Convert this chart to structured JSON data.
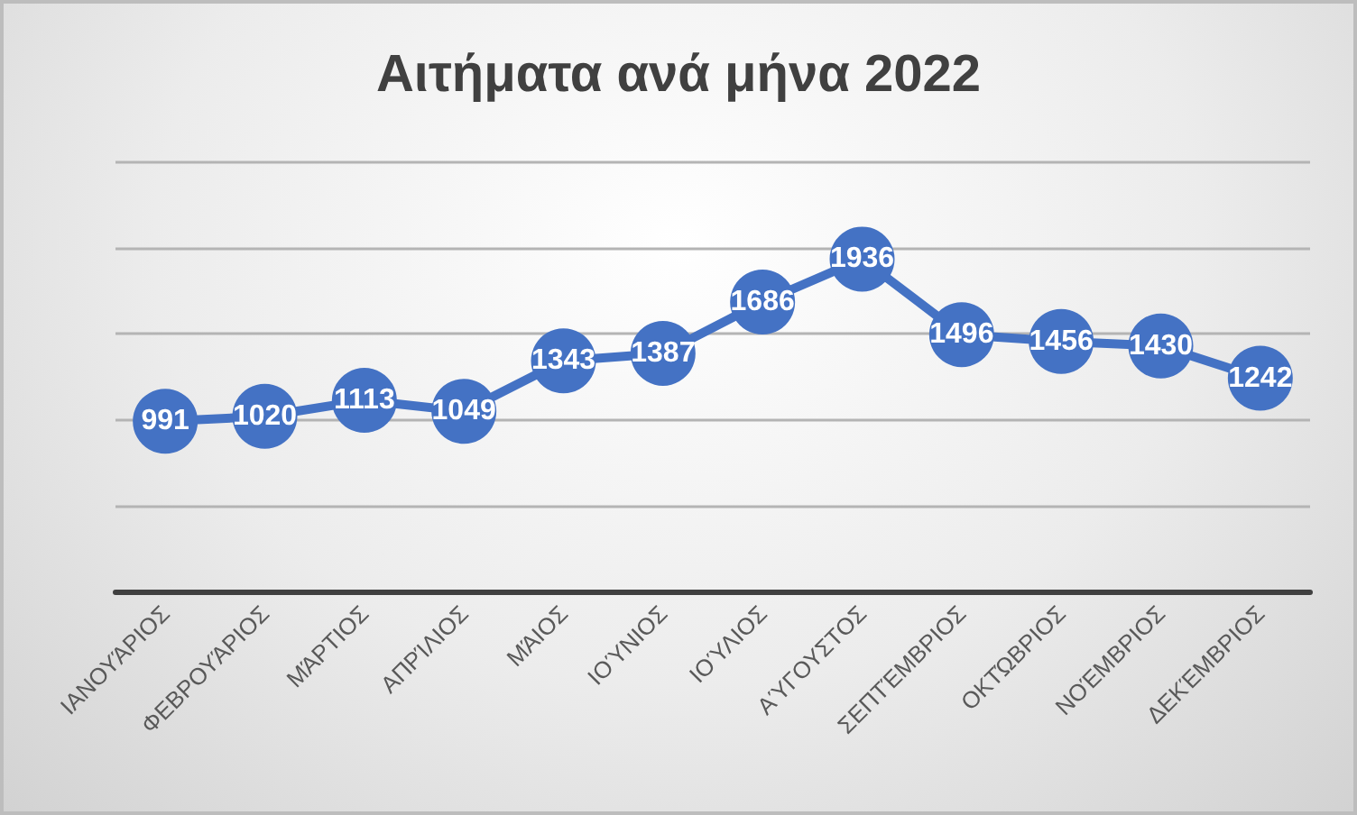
{
  "chart_data": {
    "type": "line",
    "title": "Αιτήματα ανά μήνα 2022",
    "categories": [
      "ΙΑΝΟΥΆΡΙΟΣ",
      "ΦΕΒΡΟΥΆΡΙΟΣ",
      "ΜΆΡΤΙΟΣ",
      "ΑΠΡΊΛΙΟΣ",
      "ΜΆΙΟΣ",
      "ΙΟΎΝΙΟΣ",
      "ΙΟΎΛΙΟΣ",
      "ΑΎΓΟΥΣΤΟΣ",
      "ΣΕΠΤΈΜΒΡΙΟΣ",
      "ΟΚΤΏΒΡΙΟΣ",
      "ΝΟΈΜΒΡΙΟΣ",
      "ΔΕΚΈΜΒΡΙΟΣ"
    ],
    "values": [
      991,
      1020,
      1113,
      1049,
      1343,
      1387,
      1686,
      1936,
      1496,
      1456,
      1430,
      1242
    ],
    "color": "#4472c4",
    "ylim": [
      0,
      2500
    ],
    "yticks": [
      0,
      500,
      1000,
      1500,
      2000,
      2500
    ],
    "grid": "y",
    "tick_labels": "x",
    "marker": "circle",
    "line_style": "solid",
    "data_labels": true
  }
}
